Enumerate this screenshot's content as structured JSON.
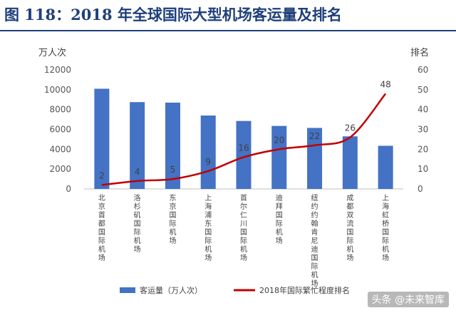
{
  "figure": {
    "title": "图 118：2018 年全球国际大型机场客运量及排名",
    "watermark": "头条 @未来智库"
  },
  "colors": {
    "bar": "#4472C4",
    "line": "#C00000",
    "title": "#1f3f7a"
  },
  "chart_data": {
    "type": "bar",
    "categories": [
      "北京首都国际机场",
      "洛杉矶国际机场",
      "东京国际机场",
      "上海浦东国际机场",
      "首尔仁川国际机场",
      "迪拜国际机场",
      "纽约约翰肯尼迪国际机场",
      "成都双流国际机场",
      "上海虹桥国际机场"
    ],
    "series": [
      {
        "name": "客运量（万人次）",
        "type": "bar",
        "axis": "left",
        "values": [
          10100,
          8750,
          8700,
          7400,
          6850,
          6350,
          6150,
          5300,
          4350
        ]
      },
      {
        "name": "2018年国际繁忙程度排名",
        "type": "line",
        "axis": "right",
        "values": [
          2,
          4,
          5,
          9,
          16,
          20,
          22,
          26,
          48
        ]
      }
    ],
    "y_left": {
      "label": "万人次",
      "min": 0,
      "max": 12000,
      "ticks": [
        "0",
        "2000",
        "4000",
        "6000",
        "8000",
        "10000",
        "12000"
      ]
    },
    "y_right": {
      "label": "排名",
      "min": 0,
      "max": 60,
      "ticks": [
        "0",
        "10",
        "20",
        "30",
        "40",
        "50",
        "60"
      ]
    },
    "grid": false,
    "legend_position": "bottom"
  }
}
